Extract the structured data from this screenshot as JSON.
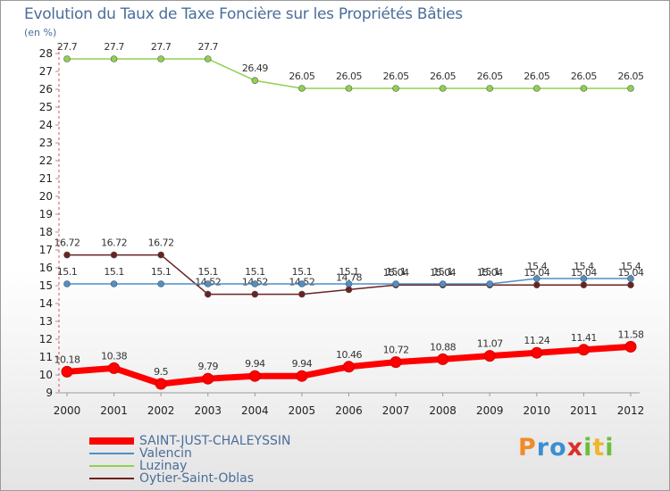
{
  "chart_data": {
    "type": "line",
    "title": "Evolution du Taux de Taxe Foncière sur les Propriétés Bâties",
    "unit_label": "(en %)",
    "xlabel": "",
    "ylabel": "",
    "x": [
      "2000",
      "2001",
      "2002",
      "2003",
      "2004",
      "2005",
      "2006",
      "2007",
      "2008",
      "2009",
      "2010",
      "2011",
      "2012"
    ],
    "ylim": [
      9,
      28
    ],
    "yticks": [
      "9",
      "10",
      "11",
      "12",
      "13",
      "14",
      "15",
      "16",
      "17",
      "18",
      "19",
      "20",
      "21",
      "22",
      "23",
      "24",
      "25",
      "26",
      "27",
      "28"
    ],
    "series": [
      {
        "name": "Luzinay",
        "color": "#8fd14f",
        "values": [
          27.7,
          27.7,
          27.7,
          27.7,
          26.49,
          26.05,
          26.05,
          26.05,
          26.05,
          26.05,
          26.05,
          26.05,
          26.05
        ],
        "labels": [
          "27.7",
          "27.7",
          "27.7",
          "27.7",
          "26.49",
          "26.05",
          "26.05",
          "26.05",
          "26.05",
          "26.05",
          "26.05",
          "26.05",
          "26.05"
        ]
      },
      {
        "name": "Oytier-Saint-Oblas",
        "color": "#6b2222",
        "values": [
          16.72,
          16.72,
          16.72,
          14.52,
          14.52,
          14.52,
          14.78,
          15.04,
          15.04,
          15.04,
          15.04,
          15.04,
          15.04
        ],
        "labels": [
          "16.72",
          "16.72",
          "16.72",
          "14.52",
          "14.52",
          "14.52",
          "14.78",
          "15.04",
          "15.04",
          "15.04",
          "15.04",
          "15.04",
          "15.04"
        ]
      },
      {
        "name": "Valencin",
        "color": "#4f8fc6",
        "values": [
          15.1,
          15.1,
          15.1,
          15.1,
          15.1,
          15.1,
          15.1,
          15.1,
          15.1,
          15.1,
          15.4,
          15.4,
          15.4
        ],
        "labels": [
          "15.1",
          "15.1",
          "15.1",
          "15.1",
          "15.1",
          "15.1",
          "15.1",
          "15.1",
          "15.1",
          "15.1",
          "15.4",
          "15.4",
          "15.4"
        ]
      },
      {
        "name": "SAINT-JUST-CHALEYSSIN",
        "color": "#ff0000",
        "values": [
          10.18,
          10.38,
          9.5,
          9.79,
          9.94,
          9.94,
          10.46,
          10.72,
          10.88,
          11.07,
          11.24,
          11.41,
          11.58
        ],
        "labels": [
          "10.18",
          "10.38",
          "9.5",
          "9.79",
          "9.94",
          "9.94",
          "10.46",
          "10.72",
          "10.88",
          "11.07",
          "11.24",
          "11.41",
          "11.58"
        ]
      }
    ],
    "legend": [
      "SAINT-JUST-CHALEYSSIN",
      "Valencin",
      "Luzinay",
      "Oytier-Saint-Oblas"
    ],
    "grid": false
  },
  "logo": {
    "p": "P",
    "r": "r",
    "o": "o",
    "x": "x",
    "i": "i",
    "t": "t",
    "i2": "i"
  }
}
